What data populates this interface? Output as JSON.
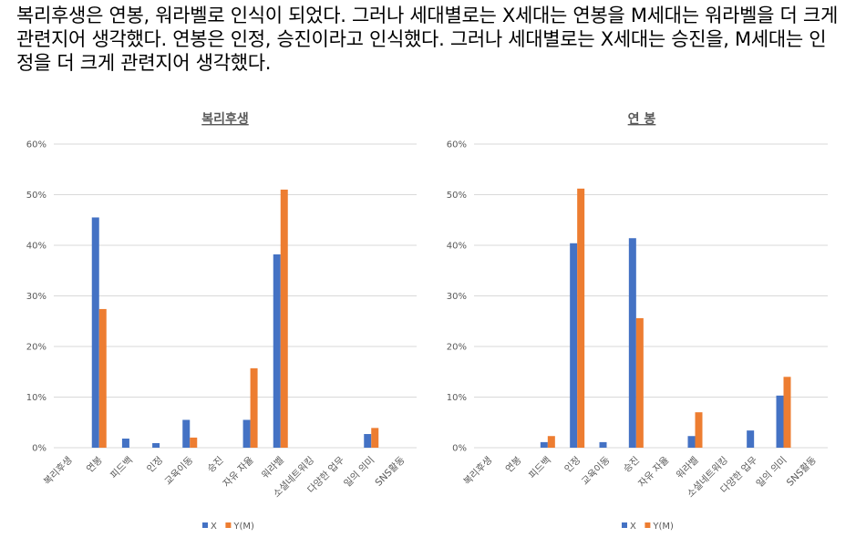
{
  "caption": "복리후생은 연봉, 워라벨로 인식이 되었다. 그러나 세대별로는 X세대는 연봉을 M세대는 워라벨을 더 크게 관련지어 생각했다. 연봉은 인정, 승진이라고 인식했다. 그러나 세대별로는 X세대는 승진을, M세대는 인정을 더 크게 관련지어 생각했다.",
  "colors": {
    "X": "#4472C4",
    "Y(M)": "#ED7D31",
    "grid": "#D9D9D9",
    "text": "#595959"
  },
  "chart_data": [
    {
      "type": "bar",
      "title": "복리후생",
      "categories": [
        "복리후생",
        "연봉",
        "피드백",
        "인정",
        "교육이동",
        "승진",
        "자유 자율",
        "워라벨",
        "소셜네트워킹",
        "다양한 업무",
        "일의 의미",
        "SNS활동"
      ],
      "series": [
        {
          "name": "X",
          "values": [
            0,
            45.5,
            1.8,
            0.9,
            5.5,
            0,
            5.5,
            38.2,
            0,
            0,
            2.7,
            0
          ]
        },
        {
          "name": "Y(M)",
          "values": [
            0,
            27.4,
            0,
            0,
            2.0,
            0,
            15.7,
            51.0,
            0,
            0,
            3.9,
            0
          ]
        }
      ],
      "yticks": [
        "0%",
        "10%",
        "20%",
        "30%",
        "40%",
        "50%",
        "60%"
      ],
      "ylim": [
        0,
        60
      ],
      "grid": true,
      "legend": "bottom"
    },
    {
      "type": "bar",
      "title": "연 봉",
      "categories": [
        "복리후생",
        "연봉",
        "피드백",
        "인정",
        "교육이동",
        "승진",
        "자유 자율",
        "워라벨",
        "소셜네트워킹",
        "다양한 업무",
        "일의 의미",
        "SNS활동"
      ],
      "series": [
        {
          "name": "X",
          "values": [
            0,
            0,
            1.1,
            40.4,
            1.1,
            41.4,
            0,
            2.3,
            0,
            3.4,
            10.3,
            0
          ]
        },
        {
          "name": "Y(M)",
          "values": [
            0,
            0,
            2.3,
            51.2,
            0,
            25.6,
            0,
            7.0,
            0,
            0,
            14.0,
            0
          ]
        }
      ],
      "yticks": [
        "0%",
        "10%",
        "20%",
        "30%",
        "40%",
        "50%",
        "60%"
      ],
      "ylim": [
        0,
        60
      ],
      "grid": true,
      "legend": "bottom"
    }
  ]
}
